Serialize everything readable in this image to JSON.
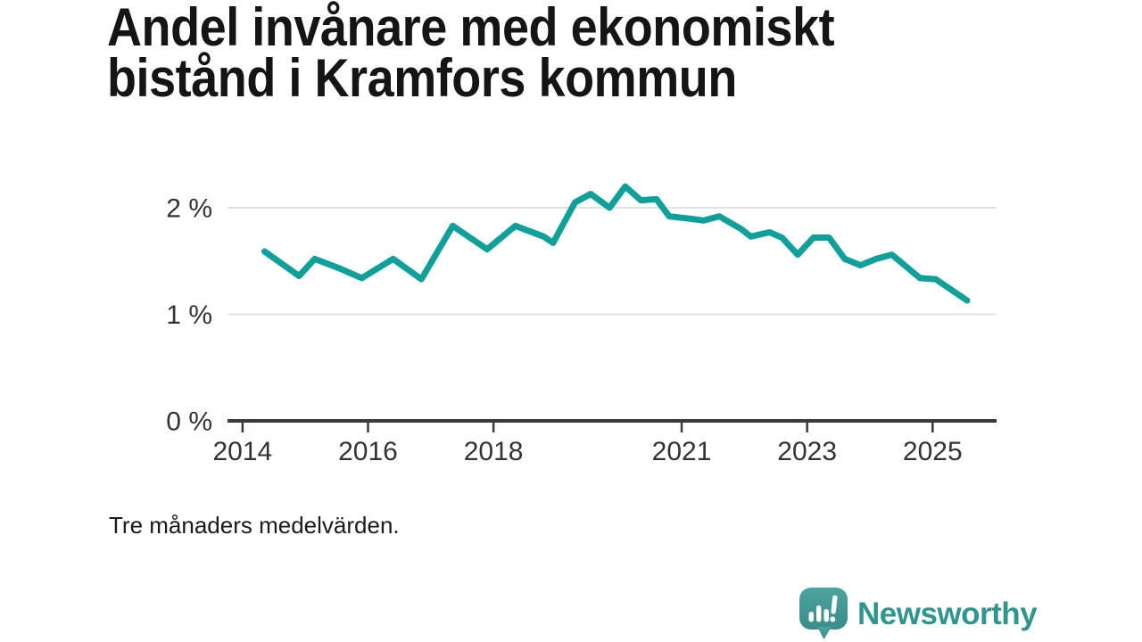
{
  "page": {
    "background": "#ffffff"
  },
  "header": {
    "title": "Andel invånare med ekonomiskt bistånd i Kramfors kommun"
  },
  "footer": {
    "caption": "Tre månaders medelvärden."
  },
  "branding": {
    "wordmark": "Newsworthy",
    "icon": "speech-bubble-bar-chart-icon",
    "wordmark_color": "#2f968f",
    "icon_color_top": "#4da3a0",
    "icon_color_bottom": "#3a8d87"
  },
  "colors": {
    "line": "#0fa199",
    "axis": "#3a3a3a",
    "grid": "#e2e2e2",
    "tick_text": "#333333",
    "title_text": "#151515"
  },
  "chart_data": {
    "type": "line",
    "title": "Andel invånare med ekonomiskt bistånd i Kramfors kommun",
    "subtitle": "Tre månaders medelvärden.",
    "unit": "%",
    "xlabel": "",
    "ylabel": "",
    "grid": "horizontal",
    "legend": "none",
    "x_domain": [
      2013.76,
      2026.02
    ],
    "y_domain": [
      0,
      2.36
    ],
    "x_ticks": [
      {
        "value": 2014,
        "label": "2014"
      },
      {
        "value": 2016,
        "label": "2016"
      },
      {
        "value": 2018,
        "label": "2018"
      },
      {
        "value": 2021,
        "label": "2021"
      },
      {
        "value": 2023,
        "label": "2023"
      },
      {
        "value": 2025,
        "label": "2025"
      }
    ],
    "y_ticks": [
      {
        "value": 0,
        "label": "0 %"
      },
      {
        "value": 1,
        "label": "1 %"
      },
      {
        "value": 2,
        "label": "2 %"
      }
    ],
    "series": [
      {
        "name": "Andel invånare med ekonomiskt bistånd",
        "color": "#0fa199",
        "points": [
          [
            2014.35,
            1.59
          ],
          [
            2014.9,
            1.36
          ],
          [
            2015.15,
            1.52
          ],
          [
            2015.55,
            1.43
          ],
          [
            2015.9,
            1.34
          ],
          [
            2016.4,
            1.52
          ],
          [
            2016.85,
            1.33
          ],
          [
            2017.35,
            1.83
          ],
          [
            2017.9,
            1.61
          ],
          [
            2018.35,
            1.83
          ],
          [
            2018.8,
            1.73
          ],
          [
            2018.95,
            1.67
          ],
          [
            2019.3,
            2.05
          ],
          [
            2019.55,
            2.13
          ],
          [
            2019.85,
            2.0
          ],
          [
            2020.1,
            2.2
          ],
          [
            2020.35,
            2.07
          ],
          [
            2020.6,
            2.08
          ],
          [
            2020.8,
            1.92
          ],
          [
            2021.1,
            1.9
          ],
          [
            2021.35,
            1.88
          ],
          [
            2021.6,
            1.92
          ],
          [
            2021.95,
            1.8
          ],
          [
            2022.1,
            1.73
          ],
          [
            2022.4,
            1.77
          ],
          [
            2022.6,
            1.72
          ],
          [
            2022.85,
            1.56
          ],
          [
            2023.1,
            1.72
          ],
          [
            2023.35,
            1.72
          ],
          [
            2023.6,
            1.52
          ],
          [
            2023.85,
            1.46
          ],
          [
            2024.1,
            1.52
          ],
          [
            2024.35,
            1.56
          ],
          [
            2024.8,
            1.34
          ],
          [
            2025.05,
            1.33
          ],
          [
            2025.55,
            1.13
          ]
        ]
      }
    ]
  }
}
